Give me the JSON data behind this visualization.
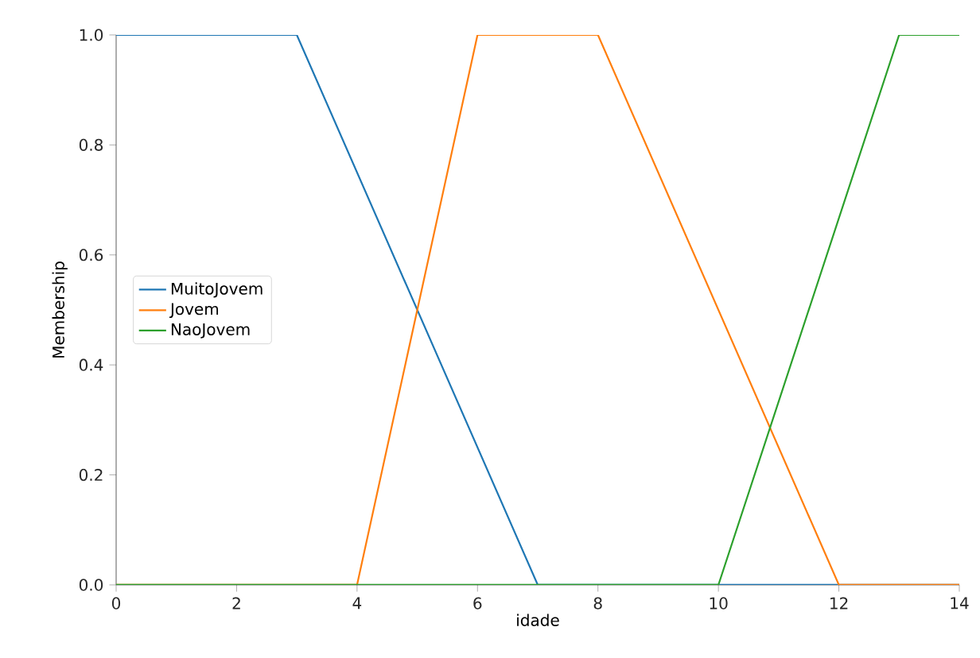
{
  "chart_data": {
    "type": "line",
    "xlabel": "idade",
    "ylabel": "Membership",
    "xlim": [
      0,
      14
    ],
    "ylim": [
      0,
      1
    ],
    "xticks": [
      0,
      2,
      4,
      6,
      8,
      10,
      12,
      14
    ],
    "yticks": [
      {
        "value": 0,
        "label": "0.0"
      },
      {
        "value": 0.2,
        "label": "0.2"
      },
      {
        "value": 0.4,
        "label": "0.4"
      },
      {
        "value": 0.6,
        "label": "0.6"
      },
      {
        "value": 0.8,
        "label": "0.8"
      },
      {
        "value": 1,
        "label": "1.0"
      }
    ],
    "legend": "left",
    "grid": false,
    "marker": "none",
    "line_style": "solid",
    "series": [
      {
        "name": "MuitoJovem",
        "color": "#1f77b4",
        "x": [
          0,
          3,
          7,
          14
        ],
        "values": [
          1,
          1,
          0,
          0
        ]
      },
      {
        "name": "Jovem",
        "color": "#ff7f0e",
        "x": [
          0,
          4,
          6,
          8,
          12,
          14
        ],
        "values": [
          0,
          0,
          1,
          1,
          0,
          0
        ]
      },
      {
        "name": "NaoJovem",
        "color": "#2ca02c",
        "x": [
          0,
          10,
          13,
          14
        ],
        "values": [
          0,
          0,
          1,
          1
        ]
      }
    ]
  }
}
